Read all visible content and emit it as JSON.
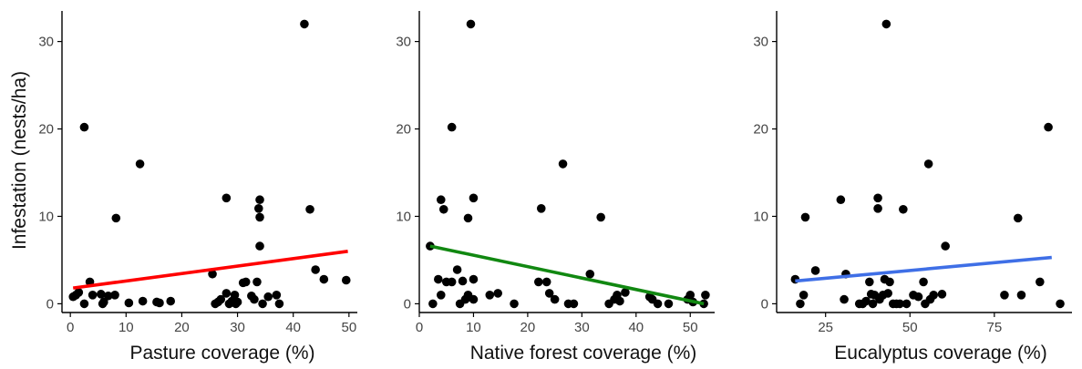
{
  "chart_data": [
    {
      "type": "scatter",
      "xlabel": "Pasture coverage (%)",
      "ylabel": "Infestation (nests/ha)",
      "xlim": [
        -1.5,
        51.5
      ],
      "ylim": [
        -1.0,
        33.5
      ],
      "xticks": [
        0,
        10,
        20,
        30,
        40,
        50
      ],
      "yticks": [
        0,
        10,
        20,
        30
      ],
      "grid": false,
      "fit_color": "#ff0000",
      "fit_line": [
        [
          0.5,
          1.8
        ],
        [
          49.8,
          6.0
        ]
      ],
      "points": [
        [
          0.5,
          0.8
        ],
        [
          1,
          1.0
        ],
        [
          1.5,
          1.3
        ],
        [
          2.5,
          20.2
        ],
        [
          2.5,
          0
        ],
        [
          3.5,
          2.5
        ],
        [
          4,
          1.0
        ],
        [
          5.5,
          1.1
        ],
        [
          5.8,
          0
        ],
        [
          6,
          0.2
        ],
        [
          6.8,
          0.9
        ],
        [
          8,
          1.0
        ],
        [
          8.2,
          9.8
        ],
        [
          10.5,
          0.1
        ],
        [
          12.5,
          16.0
        ],
        [
          13,
          0.3
        ],
        [
          15.5,
          0.2
        ],
        [
          16,
          0.1
        ],
        [
          18,
          0.3
        ],
        [
          25.5,
          3.4
        ],
        [
          26,
          0
        ],
        [
          26.5,
          0.2
        ],
        [
          27,
          0.5
        ],
        [
          28,
          12.1
        ],
        [
          28,
          1.2
        ],
        [
          28.5,
          0
        ],
        [
          29,
          0.3
        ],
        [
          29.5,
          1.0
        ],
        [
          29.7,
          0
        ],
        [
          30,
          0.2
        ],
        [
          31,
          2.4
        ],
        [
          31.5,
          2.5
        ],
        [
          32.5,
          0.9
        ],
        [
          33,
          0.5
        ],
        [
          33.5,
          2.5
        ],
        [
          33.8,
          10.9
        ],
        [
          34,
          11.9
        ],
        [
          34,
          9.9
        ],
        [
          34,
          6.6
        ],
        [
          34.5,
          0
        ],
        [
          35.5,
          0.8
        ],
        [
          37,
          1.0
        ],
        [
          37.5,
          0
        ],
        [
          42,
          32.0
        ],
        [
          43,
          10.8
        ],
        [
          44,
          3.9
        ],
        [
          45.5,
          2.8
        ],
        [
          49.5,
          2.7
        ]
      ]
    },
    {
      "type": "scatter",
      "xlabel": "Native forest coverage (%)",
      "ylabel": "",
      "xlim": [
        0,
        54.5
      ],
      "ylim": [
        -1.0,
        33.5
      ],
      "xticks": [
        0,
        10,
        20,
        30,
        40,
        50
      ],
      "yticks": [
        0,
        10,
        20,
        30
      ],
      "grid": false,
      "fit_color": "#118811",
      "fit_line": [
        [
          2,
          6.6
        ],
        [
          52.5,
          0.0
        ]
      ],
      "points": [
        [
          2,
          6.6
        ],
        [
          2.5,
          0
        ],
        [
          3.5,
          2.8
        ],
        [
          4,
          1.0
        ],
        [
          4,
          11.9
        ],
        [
          4.5,
          10.8
        ],
        [
          5,
          2.5
        ],
        [
          6,
          20.2
        ],
        [
          6,
          2.5
        ],
        [
          7,
          3.9
        ],
        [
          7.5,
          0
        ],
        [
          8,
          2.6
        ],
        [
          8.5,
          0.5
        ],
        [
          9,
          1.0
        ],
        [
          9,
          9.8
        ],
        [
          9.5,
          32.0
        ],
        [
          10,
          12.1
        ],
        [
          10,
          2.8
        ],
        [
          10,
          0.5
        ],
        [
          13,
          1.0
        ],
        [
          14.5,
          1.2
        ],
        [
          17.5,
          0
        ],
        [
          22,
          2.5
        ],
        [
          22.5,
          10.9
        ],
        [
          23.5,
          2.5
        ],
        [
          24,
          1.2
        ],
        [
          25,
          0.5
        ],
        [
          26.5,
          16.0
        ],
        [
          27.5,
          0
        ],
        [
          28.5,
          0
        ],
        [
          31.5,
          3.4
        ],
        [
          33.5,
          9.9
        ],
        [
          35,
          0
        ],
        [
          36,
          0.5
        ],
        [
          36.5,
          1.0
        ],
        [
          37,
          0.3
        ],
        [
          38,
          1.3
        ],
        [
          42.5,
          0.8
        ],
        [
          43,
          0.5
        ],
        [
          44,
          0
        ],
        [
          46,
          0
        ],
        [
          49.5,
          0.5
        ],
        [
          50,
          1.0
        ],
        [
          50.5,
          0.2
        ],
        [
          52.5,
          0
        ],
        [
          52.8,
          1.0
        ]
      ]
    },
    {
      "type": "scatter",
      "xlabel": "Eucalyptus coverage (%)",
      "ylabel": "",
      "xlim": [
        10.5,
        98
      ],
      "ylim": [
        -1.0,
        33.5
      ],
      "xticks": [
        25,
        50,
        75
      ],
      "yticks": [
        0,
        10,
        20,
        30
      ],
      "grid": false,
      "fit_color": "#3f6fe6",
      "fit_line": [
        [
          16,
          2.6
        ],
        [
          92,
          5.3
        ]
      ],
      "points": [
        [
          16,
          2.8
        ],
        [
          17.5,
          0
        ],
        [
          18.5,
          1.0
        ],
        [
          19,
          9.9
        ],
        [
          22,
          3.8
        ],
        [
          29.5,
          11.9
        ],
        [
          30.5,
          0.5
        ],
        [
          31,
          3.4
        ],
        [
          35,
          0
        ],
        [
          36,
          0
        ],
        [
          37,
          0.3
        ],
        [
          38,
          2.5
        ],
        [
          38.5,
          1.1
        ],
        [
          39,
          0
        ],
        [
          39.5,
          1.0
        ],
        [
          40.5,
          12.1
        ],
        [
          40.5,
          10.9
        ],
        [
          41,
          0.5
        ],
        [
          42,
          1.0
        ],
        [
          42.5,
          2.8
        ],
        [
          43,
          32.0
        ],
        [
          43.5,
          1.2
        ],
        [
          44,
          2.5
        ],
        [
          45,
          0
        ],
        [
          46,
          0
        ],
        [
          47,
          0
        ],
        [
          48,
          10.8
        ],
        [
          49,
          0
        ],
        [
          51,
          1.0
        ],
        [
          52.5,
          0.8
        ],
        [
          54,
          2.5
        ],
        [
          54.5,
          0
        ],
        [
          55.5,
          16.0
        ],
        [
          56,
          0.5
        ],
        [
          57,
          1.0
        ],
        [
          59.5,
          1.1
        ],
        [
          60.5,
          6.6
        ],
        [
          78,
          1.0
        ],
        [
          82,
          9.8
        ],
        [
          83,
          1.0
        ],
        [
          88.5,
          2.5
        ],
        [
          91,
          20.2
        ],
        [
          94.5,
          0
        ]
      ]
    }
  ]
}
